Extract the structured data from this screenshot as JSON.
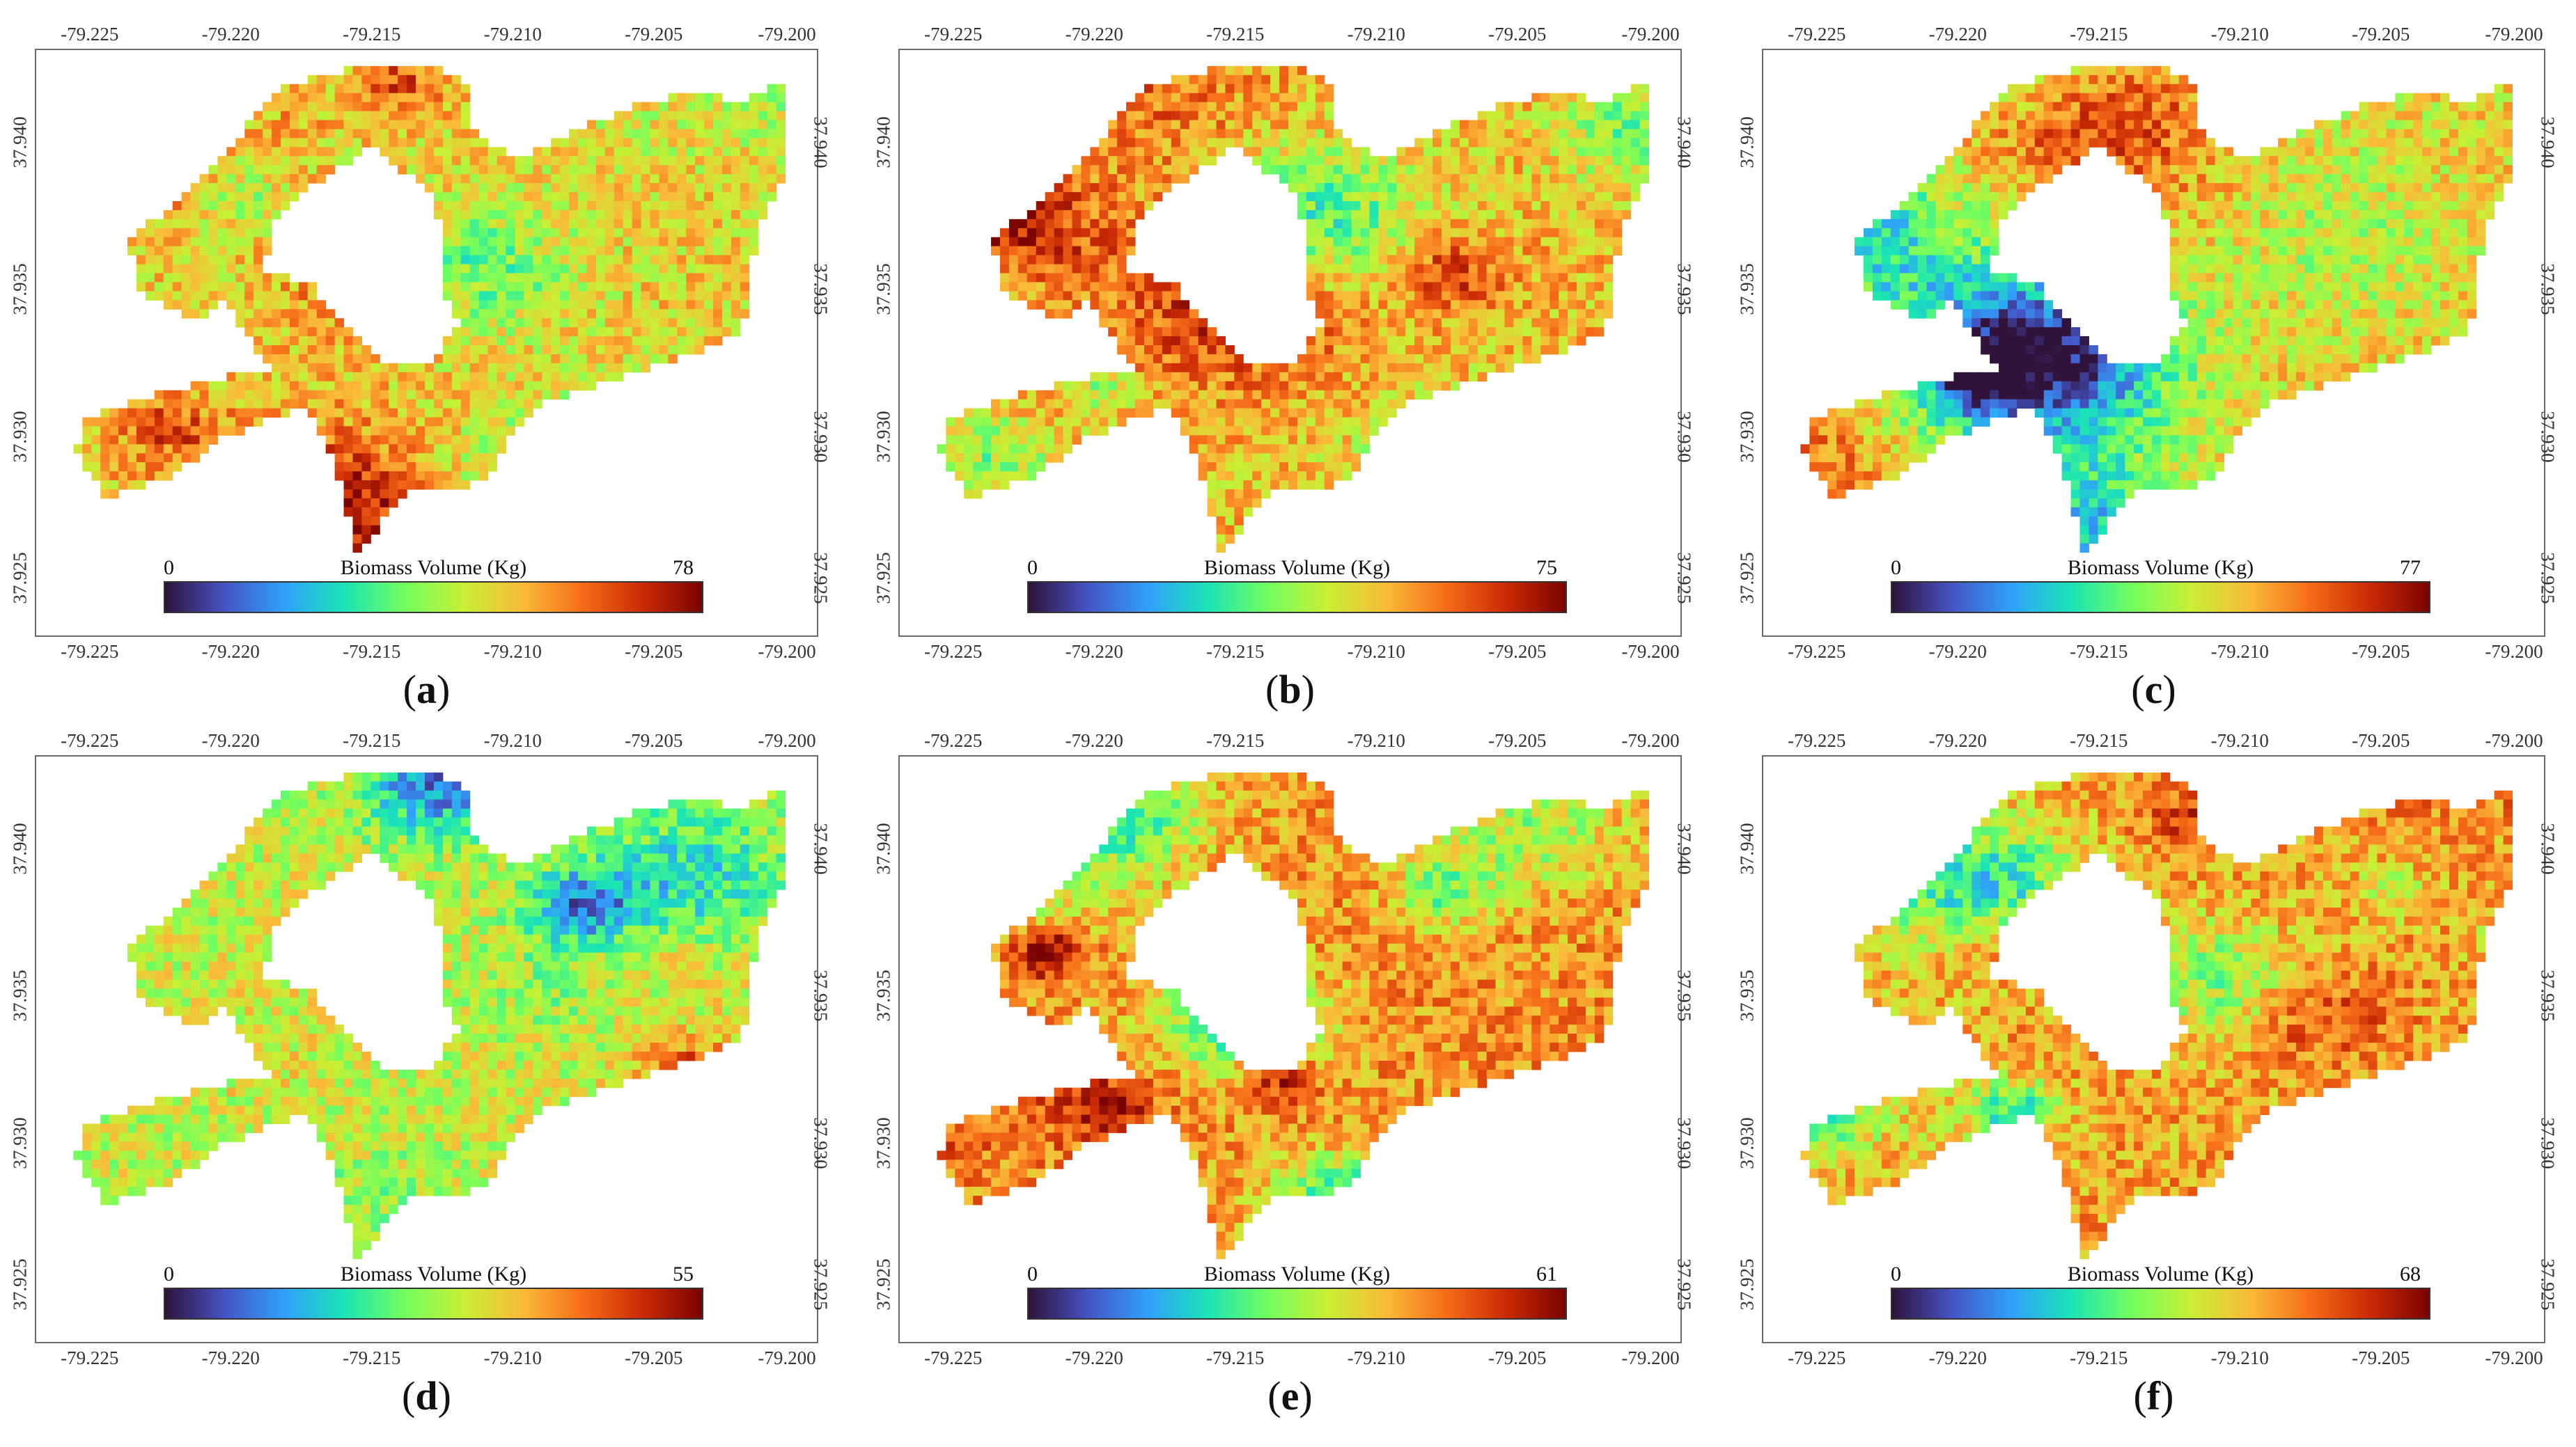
{
  "figure": {
    "x_ticks": [
      "-79.225",
      "-79.220",
      "-79.215",
      "-79.210",
      "-79.205",
      "-79.200"
    ],
    "y_ticks": [
      "37.940",
      "37.935",
      "37.930",
      "37.925"
    ],
    "colorbar_title": "Biomass Volume (Kg)",
    "colorbar_min": "0",
    "colormap": [
      "#30123b",
      "#4454c4",
      "#31a0fb",
      "#1ae4b6",
      "#71fe5f",
      "#c8ef34",
      "#faba39",
      "#f66c19",
      "#ca2a04",
      "#7a0403"
    ],
    "panels": [
      {
        "id": "a",
        "caption_open": "(",
        "caption_letter": "a",
        "caption_close": ")",
        "colorbar_max": "78",
        "mean_level": 0.62,
        "seed": 11
      },
      {
        "id": "b",
        "caption_open": "(",
        "caption_letter": "b",
        "caption_close": ")",
        "colorbar_max": "75",
        "mean_level": 0.66,
        "seed": 23
      },
      {
        "id": "c",
        "caption_open": "(",
        "caption_letter": "c",
        "caption_close": ")",
        "colorbar_max": "77",
        "mean_level": 0.62,
        "seed": 37
      },
      {
        "id": "d",
        "caption_open": "(",
        "caption_letter": "d",
        "caption_close": ")",
        "colorbar_max": "55",
        "mean_level": 0.55,
        "seed": 41
      },
      {
        "id": "e",
        "caption_open": "(",
        "caption_letter": "e",
        "caption_close": ")",
        "colorbar_max": "61",
        "mean_level": 0.72,
        "seed": 53
      },
      {
        "id": "f",
        "caption_open": "(",
        "caption_letter": "f",
        "caption_close": ")",
        "colorbar_max": "68",
        "mean_level": 0.7,
        "seed": 67
      }
    ]
  }
}
